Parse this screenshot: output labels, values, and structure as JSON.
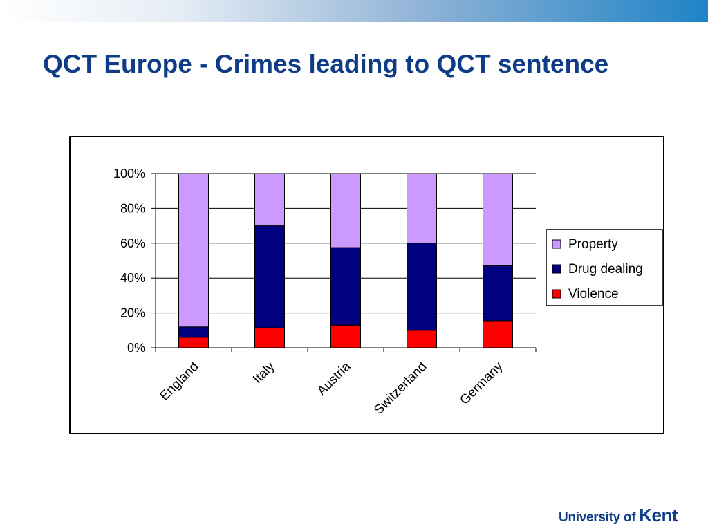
{
  "slide": {
    "title": "QCT Europe - Crimes leading to QCT sentence",
    "logo_text_a": "University of ",
    "logo_text_b": "Kent"
  },
  "colors": {
    "title": "#0e3c87",
    "property": "#cc99ff",
    "drug_dealing": "#000080",
    "violence": "#ff0000"
  },
  "chart_data": {
    "type": "bar",
    "stacked": true,
    "percent_stacked": true,
    "categories": [
      "England",
      "Italy",
      "Austria",
      "Switzerland",
      "Germany"
    ],
    "series": [
      {
        "name": "Violence",
        "color": "#ff0000",
        "values": [
          6,
          11.5,
          13,
          10,
          15.5
        ]
      },
      {
        "name": "Drug dealing",
        "color": "#000080",
        "values": [
          6,
          58.5,
          44.5,
          50,
          31.5
        ]
      },
      {
        "name": "Property",
        "color": "#cc99ff",
        "values": [
          88,
          30,
          42.5,
          40,
          53
        ]
      }
    ],
    "legend_order": [
      "Property",
      "Drug dealing",
      "Violence"
    ],
    "yticks": [
      "0%",
      "20%",
      "40%",
      "60%",
      "80%",
      "100%"
    ],
    "ylim": [
      0,
      100
    ],
    "title": "",
    "xlabel": "",
    "ylabel": "",
    "grid": true,
    "legend_position": "right"
  }
}
